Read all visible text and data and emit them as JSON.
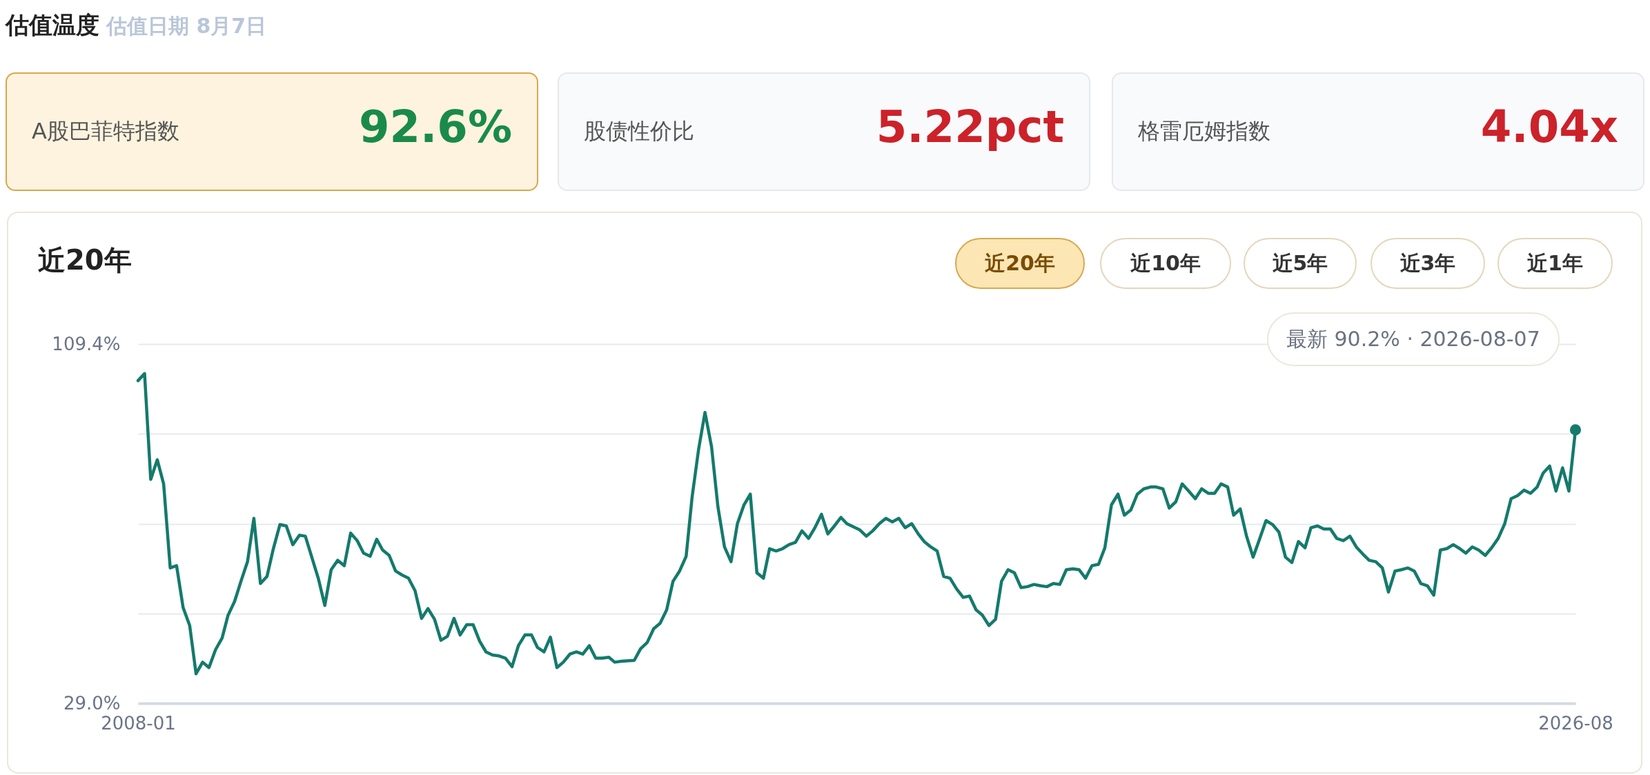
{
  "chart_data": [
    {
      "type": "other",
      "title": "估值温度",
      "subtitle": "估值日期 8月7日",
      "annotations": [
        "A股巴菲特指数",
        "92.6%",
        "股债性价比",
        "5.22pct",
        "格雷厄姆指数",
        "4.04x"
      ]
    },
    {
      "type": "line",
      "title": "近20年",
      "color": "#147a6c",
      "grid": "y",
      "line_style": "solid",
      "annotations": [
        "近20年",
        "近10年",
        "近5年",
        "近3年",
        "近1年",
        "最新 90.2% · 2026-08-07"
      ],
      "xlim": [
        "2008-01",
        "2026-08"
      ],
      "xticks": [
        "2008-01",
        "2026-08"
      ],
      "ylim": [
        29.0,
        109.4
      ],
      "yticks": [
        {
          "value": 109.4,
          "label": "109.4%"
        },
        {
          "value": 89.3,
          "label": null
        },
        {
          "value": 69.2,
          "label": null
        },
        {
          "value": 49.1,
          "label": null
        },
        {
          "value": 29.0,
          "label": "29.0%"
        }
      ],
      "x": [
        "2008-01",
        "2008-02",
        "2008-03",
        "2008-04",
        "2008-05",
        "2008-06",
        "2008-07",
        "2008-08",
        "2008-09",
        "2008-10",
        "2008-11",
        "2008-12",
        "2009-01",
        "2009-02",
        "2009-03",
        "2009-04",
        "2009-05",
        "2009-06",
        "2009-07",
        "2009-08",
        "2009-09",
        "2009-10",
        "2009-11",
        "2009-12",
        "2010-01",
        "2010-02",
        "2010-03",
        "2010-05",
        "2010-06",
        "2010-07",
        "2010-08",
        "2010-09",
        "2010-10",
        "2010-11",
        "2010-12",
        "2011-01",
        "2011-02",
        "2011-03",
        "2011-04",
        "2011-05",
        "2011-06",
        "2011-07",
        "2011-08",
        "2011-09",
        "2011-10",
        "2011-11",
        "2011-12",
        "2012-01",
        "2012-02",
        "2012-03",
        "2012-04",
        "2012-05",
        "2012-06",
        "2012-07",
        "2012-08",
        "2012-09",
        "2012-10",
        "2012-11",
        "2012-12",
        "2013-01",
        "2013-02",
        "2013-03",
        "2013-04",
        "2013-05",
        "2013-06",
        "2013-07",
        "2013-08",
        "2013-09",
        "2013-10",
        "2013-11",
        "2013-12",
        "2014-01",
        "2014-02",
        "2014-03",
        "2014-04",
        "2014-06",
        "2014-07",
        "2014-08",
        "2014-09",
        "2014-10",
        "2014-11",
        "2014-12",
        "2015-01",
        "2015-02",
        "2015-03",
        "2015-04",
        "2015-05",
        "2015-06",
        "2015-07",
        "2015-08",
        "2015-09",
        "2015-10",
        "2015-11",
        "2015-12",
        "2016-01",
        "2016-02",
        "2016-03",
        "2016-04",
        "2016-05",
        "2016-06",
        "2016-07",
        "2016-08",
        "2016-09",
        "2016-10",
        "2016-11",
        "2016-12",
        "2017-01",
        "2017-02",
        "2017-03",
        "2017-05",
        "2017-06",
        "2017-07",
        "2017-08",
        "2017-09",
        "2017-10",
        "2017-11",
        "2017-12",
        "2018-01",
        "2018-02",
        "2018-03",
        "2018-04",
        "2018-05",
        "2018-06",
        "2018-07",
        "2018-08",
        "2018-09",
        "2018-10",
        "2018-11",
        "2018-12",
        "2019-01",
        "2019-02",
        "2019-03",
        "2019-04",
        "2019-05",
        "2019-06",
        "2019-07",
        "2019-08",
        "2019-09",
        "2019-10",
        "2019-11",
        "2019-12",
        "2020-01",
        "2020-02",
        "2020-03",
        "2020-04",
        "2020-05",
        "2020-06",
        "2020-07",
        "2020-08",
        "2020-09",
        "2020-10",
        "2020-11",
        "2020-12",
        "2021-01",
        "2021-02",
        "2021-03",
        "2021-04",
        "2021-05",
        "2021-06",
        "2021-07",
        "2021-08",
        "2021-09",
        "2021-10",
        "2021-11",
        "2021-12",
        "2022-01",
        "2022-02",
        "2022-03",
        "2022-04",
        "2022-05",
        "2022-06",
        "2022-07",
        "2022-08",
        "2022-09",
        "2022-10",
        "2022-11",
        "2022-12",
        "2023-01",
        "2023-02",
        "2023-03",
        "2023-04",
        "2023-05",
        "2023-06",
        "2023-07",
        "2023-08",
        "2023-09",
        "2023-10",
        "2023-11",
        "2023-12",
        "2024-01",
        "2024-02",
        "2024-03",
        "2024-04",
        "2024-05",
        "2024-06",
        "2024-07",
        "2024-08",
        "2024-09",
        "2024-10",
        "2024-11",
        "2024-12",
        "2025-01",
        "2025-02",
        "2025-03",
        "2025-04",
        "2025-05",
        "2025-06",
        "2025-07",
        "2025-08",
        "2025-09",
        "2025-10",
        "2025-11",
        "2025-12",
        "2026-01",
        "2026-02",
        "2026-03",
        "2026-04",
        "2026-05",
        "2026-06",
        "2026-07",
        "2026-08"
      ],
      "values": [
        101.2,
        102.8,
        79.1,
        83.5,
        78.1,
        59.3,
        59.8,
        50.4,
        46.4,
        35.6,
        38.2,
        37.0,
        41.0,
        43.6,
        48.7,
        51.8,
        56.3,
        60.7,
        70.4,
        55.8,
        57.4,
        63.6,
        69.0,
        68.7,
        64.5,
        66.6,
        66.4,
        57.0,
        50.9,
        58.9,
        61.0,
        59.8,
        67.1,
        65.4,
        62.6,
        61.9,
        65.7,
        63.3,
        62.1,
        58.6,
        57.7,
        57.0,
        54.2,
        48.0,
        50.2,
        47.8,
        43.1,
        44.0,
        48.0,
        44.3,
        46.6,
        46.6,
        42.9,
        40.5,
        39.8,
        39.6,
        39.1,
        37.2,
        41.9,
        44.3,
        44.3,
        41.5,
        40.5,
        43.8,
        37.0,
        38.2,
        40.0,
        40.5,
        40.0,
        41.9,
        39.1,
        39.1,
        39.3,
        38.2,
        38.4,
        38.6,
        41.2,
        42.6,
        45.7,
        46.9,
        49.9,
        56.3,
        58.6,
        61.9,
        75.1,
        85.9,
        94.1,
        86.4,
        73.0,
        64.0,
        60.7,
        69.2,
        73.4,
        75.8,
        58.2,
        57.0,
        63.6,
        63.1,
        63.6,
        64.5,
        65.0,
        67.6,
        65.9,
        68.3,
        71.3,
        66.9,
        68.7,
        70.6,
        69.2,
        67.8,
        66.4,
        67.6,
        69.2,
        70.4,
        69.6,
        70.4,
        68.3,
        69.2,
        66.9,
        65.2,
        64.0,
        63.1,
        57.4,
        57.0,
        54.6,
        52.7,
        53.0,
        49.9,
        48.7,
        46.4,
        47.8,
        56.3,
        58.9,
        58.2,
        54.9,
        55.1,
        55.6,
        55.3,
        55.1,
        55.8,
        55.6,
        58.9,
        59.1,
        58.9,
        57.0,
        59.8,
        60.1,
        63.8,
        73.4,
        75.8,
        71.1,
        72.3,
        75.8,
        77.0,
        77.4,
        77.4,
        77.0,
        72.7,
        74.1,
        78.1,
        76.5,
        74.8,
        77.0,
        76.0,
        76.0,
        78.1,
        77.4,
        71.1,
        72.5,
        66.4,
        61.7,
        65.7,
        69.9,
        69.0,
        67.3,
        61.7,
        60.5,
        65.2,
        63.8,
        68.3,
        68.7,
        68.0,
        68.0,
        65.9,
        65.4,
        66.4,
        64.0,
        62.4,
        61.0,
        60.7,
        59.3,
        53.9,
        58.6,
        58.9,
        59.3,
        58.6,
        55.8,
        55.3,
        53.2,
        63.3,
        63.6,
        64.5,
        63.6,
        62.6,
        64.0,
        63.3,
        62.1,
        63.8,
        65.9,
        69.2,
        74.8,
        75.5,
        76.7,
        76.0,
        77.4,
        80.5,
        82.1,
        76.5,
        81.7,
        76.5,
        90.2
      ]
    }
  ]
}
